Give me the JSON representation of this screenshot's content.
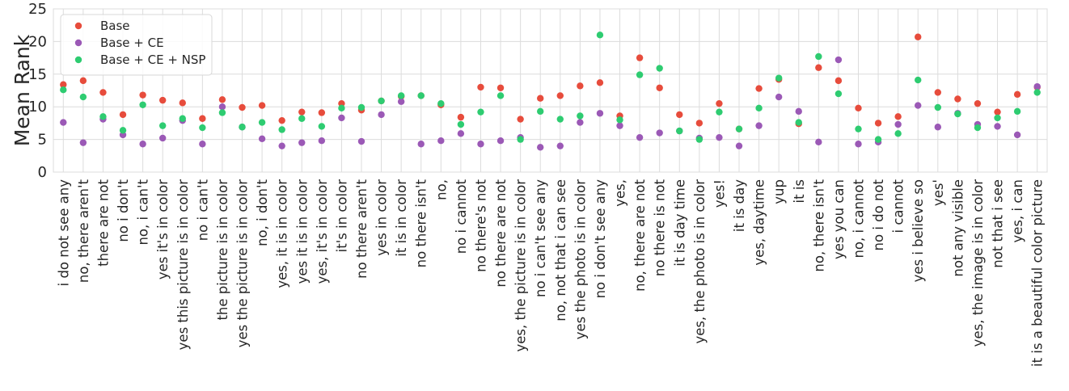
{
  "chart_data": {
    "type": "scatter",
    "ylabel": "Mean Rank",
    "ylim": [
      0,
      25
    ],
    "yticks": [
      0,
      5,
      10,
      15,
      20,
      25
    ],
    "grid": true,
    "legend_position": "top-left",
    "categories": [
      "i do not see any",
      "no, there aren't",
      "there are not",
      "no i don't",
      "no, i can't",
      "yes it's in color",
      "yes this picture is in color",
      "no i can't",
      "the picture is in color",
      "yes the picture is in color",
      "no, i don't",
      "yes, it is in color",
      "yes it is in color",
      "yes, it's in color",
      "it's in color",
      "no there aren't",
      "yes in color",
      "it is in color",
      "no there isn't",
      "no,",
      "no i cannot",
      "no there's not",
      "no there are not",
      "yes, the picture is in color",
      "no i can't see any",
      "no, not that i can see",
      "yes the photo is in color",
      "no i don't see any",
      "yes,",
      "no, there are not",
      "no there is not",
      "it is day time",
      "yes, the photo is in color",
      "yes!",
      "it is day",
      "yes, daytime",
      "yup",
      "it is",
      "no, there isn't",
      "yes you can",
      "no, i cannot",
      "no i do not",
      "i cannot",
      "yes i believe so",
      "yes'",
      "not any visible",
      "yes, the image is in color",
      "not that i see",
      "yes, i can",
      "it is a beautiful color picture"
    ],
    "series": [
      {
        "name": "Base",
        "color": "#e74c3c",
        "values": [
          13.4,
          14.0,
          12.2,
          8.8,
          11.8,
          11.0,
          10.6,
          8.2,
          11.1,
          9.9,
          10.2,
          7.9,
          9.2,
          9.1,
          10.5,
          9.5,
          10.9,
          11.6,
          11.7,
          10.3,
          8.4,
          13.0,
          12.9,
          8.1,
          11.3,
          11.7,
          13.2,
          13.7,
          8.6,
          17.5,
          12.9,
          8.8,
          7.5,
          10.5,
          6.6,
          12.8,
          14.2,
          7.4,
          16.0,
          14.0,
          9.8,
          7.5,
          8.5,
          20.7,
          12.2,
          11.2,
          10.5,
          9.2,
          11.9,
          13.0
        ]
      },
      {
        "name": "Base + CE",
        "color": "#9b59b6",
        "values": [
          7.6,
          4.5,
          8.1,
          5.7,
          4.3,
          5.2,
          7.9,
          4.3,
          10.0,
          6.9,
          5.1,
          4.0,
          4.5,
          4.8,
          8.3,
          4.7,
          8.8,
          10.8,
          4.3,
          4.8,
          5.9,
          4.3,
          4.8,
          5.3,
          3.8,
          4.0,
          7.6,
          9.0,
          7.1,
          5.3,
          6.0,
          6.3,
          5.2,
          5.3,
          4.0,
          7.1,
          11.5,
          9.3,
          4.6,
          17.2,
          4.3,
          4.6,
          7.3,
          10.2,
          6.9,
          9.0,
          7.3,
          7.0,
          5.7,
          13.1
        ]
      },
      {
        "name": "Base + CE + NSP",
        "color": "#2ecc71",
        "values": [
          12.6,
          11.5,
          8.5,
          6.4,
          10.3,
          7.1,
          8.2,
          6.8,
          9.1,
          6.9,
          7.6,
          6.5,
          8.2,
          7.0,
          9.8,
          9.9,
          10.9,
          11.7,
          11.7,
          10.5,
          7.3,
          9.2,
          11.7,
          5.0,
          9.3,
          8.1,
          8.6,
          21.0,
          8.0,
          14.9,
          15.9,
          6.3,
          5.0,
          9.2,
          6.6,
          9.8,
          14.4,
          7.6,
          17.7,
          12.0,
          6.6,
          5.0,
          5.9,
          14.1,
          9.9,
          8.9,
          6.8,
          8.3,
          9.3,
          12.2
        ]
      }
    ]
  }
}
